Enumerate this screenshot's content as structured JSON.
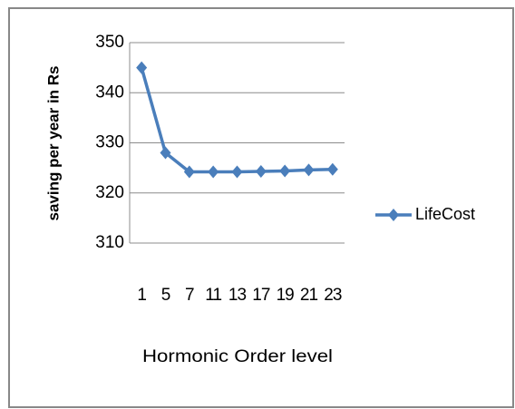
{
  "chart_data": {
    "type": "line",
    "categories": [
      "1",
      "5",
      "7",
      "11",
      "13",
      "17",
      "19",
      "21",
      "23"
    ],
    "series": [
      {
        "name": "LifeCost",
        "color": "#4a7ebb",
        "values": [
          345,
          328,
          324.2,
          324.2,
          324.2,
          324.3,
          324.4,
          324.6,
          324.7
        ]
      }
    ],
    "ylim": [
      310,
      350
    ],
    "yticks": [
      310,
      320,
      330,
      340,
      350
    ],
    "grid": true,
    "y_label": "saving per year in Rs",
    "x_label": "Hormonic Order level",
    "legend": "right"
  }
}
